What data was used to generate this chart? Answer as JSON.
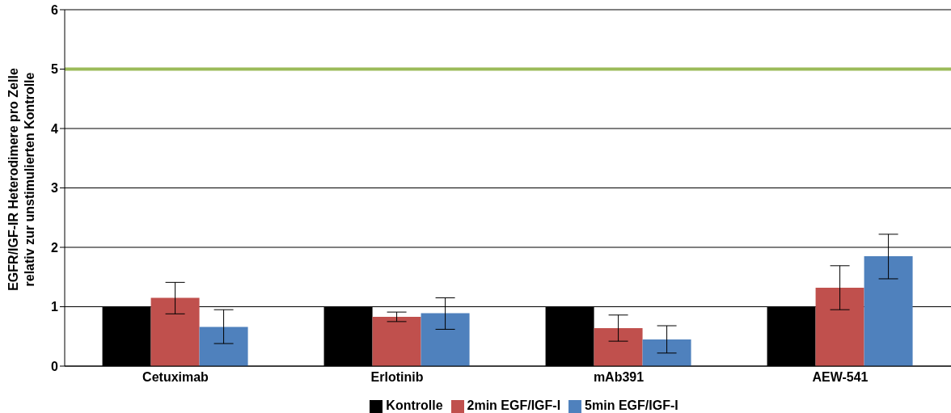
{
  "chart_data": {
    "type": "bar",
    "ylabel": "EGFR/IGF-IR Heterodimere pro Zelle relativ zur unstimulierten Kontrolle",
    "categories": [
      "Cetuximab",
      "Erlotinib",
      "mAb391",
      "AEW-541"
    ],
    "series": [
      {
        "name": "Kontrolle",
        "color": "#000000",
        "values": [
          1,
          1,
          1,
          1
        ]
      },
      {
        "name": "2min EGF/IGF-I",
        "color": "#c0504d",
        "values": [
          1.15,
          0.83,
          0.64,
          1.32
        ],
        "errors": [
          [
            0.88,
            1.41
          ],
          [
            0.75,
            0.91
          ],
          [
            0.42,
            0.86
          ],
          [
            0.95,
            1.69
          ]
        ]
      },
      {
        "name": "5min EGF/IGF-I",
        "color": "#4f81bd",
        "values": [
          0.66,
          0.89,
          0.45,
          1.85
        ],
        "errors": [
          [
            0.38,
            0.95
          ],
          [
            0.62,
            1.15
          ],
          [
            0.22,
            0.68
          ],
          [
            1.47,
            2.22
          ]
        ]
      }
    ],
    "ylim": [
      0,
      6
    ],
    "yticks": [
      0,
      1,
      2,
      3,
      4,
      5,
      6
    ],
    "grid": "y",
    "legend": "bottom",
    "ref_lines": [
      {
        "axis": "y",
        "value": 5,
        "color": "#9bbb59"
      }
    ]
  }
}
